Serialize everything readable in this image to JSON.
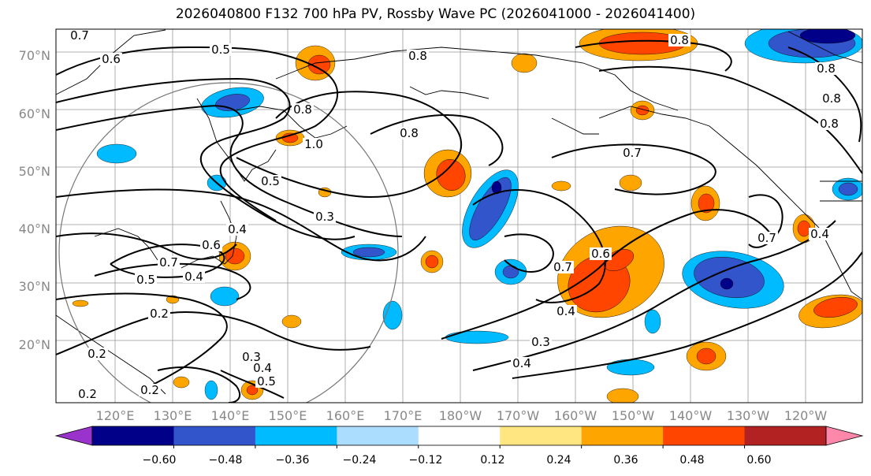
{
  "title": "2026040800 F132 700 hPa PV, Rossby Wave PC (2026041000 - 2026041400)",
  "lat_labels": [
    "70°N",
    "60°N",
    "50°N",
    "40°N",
    "30°N",
    "20°N"
  ],
  "lon_labels": [
    "120°E",
    "130°E",
    "140°E",
    "150°E",
    "160°E",
    "170°E",
    "180°W",
    "170°W",
    "160°W",
    "150°W",
    "140°W",
    "130°W",
    "120°W"
  ],
  "colorbar": {
    "colors": [
      "#9933cc",
      "#000088",
      "#3355cc",
      "#00bbff",
      "#aaddff",
      "#ffffff",
      "#ffe680",
      "#ffa500",
      "#ff4500",
      "#b22222",
      "#ff88aa"
    ],
    "tick_labels": [
      "−0.60",
      "−0.48",
      "−0.36",
      "−0.24",
      "−0.12",
      "0.12",
      "0.24",
      "0.36",
      "0.48",
      "0.60"
    ]
  },
  "contour_labels": [
    "0.7",
    "0.6",
    "0.5",
    "0.8",
    "0.8",
    "0.8",
    "1.0",
    "0.8",
    "0.7",
    "0.5",
    "0.3",
    "0.6",
    "0.4",
    "0.5",
    "0.7",
    "0.4",
    "0.2",
    "0.2",
    "0.2",
    "0.3",
    "0.4",
    "0.5",
    "0.2",
    "0.3",
    "0.4",
    "0.6",
    "0.7",
    "0.4",
    "0.7",
    "0.4",
    "0.8",
    "0.8",
    "0.8"
  ],
  "shading_colors": {
    "neg_light": "#00bbff",
    "neg_mid": "#3355cc",
    "neg_strong": "#000088",
    "pos_light": "#ffa500",
    "pos_mid": "#ff4500"
  }
}
